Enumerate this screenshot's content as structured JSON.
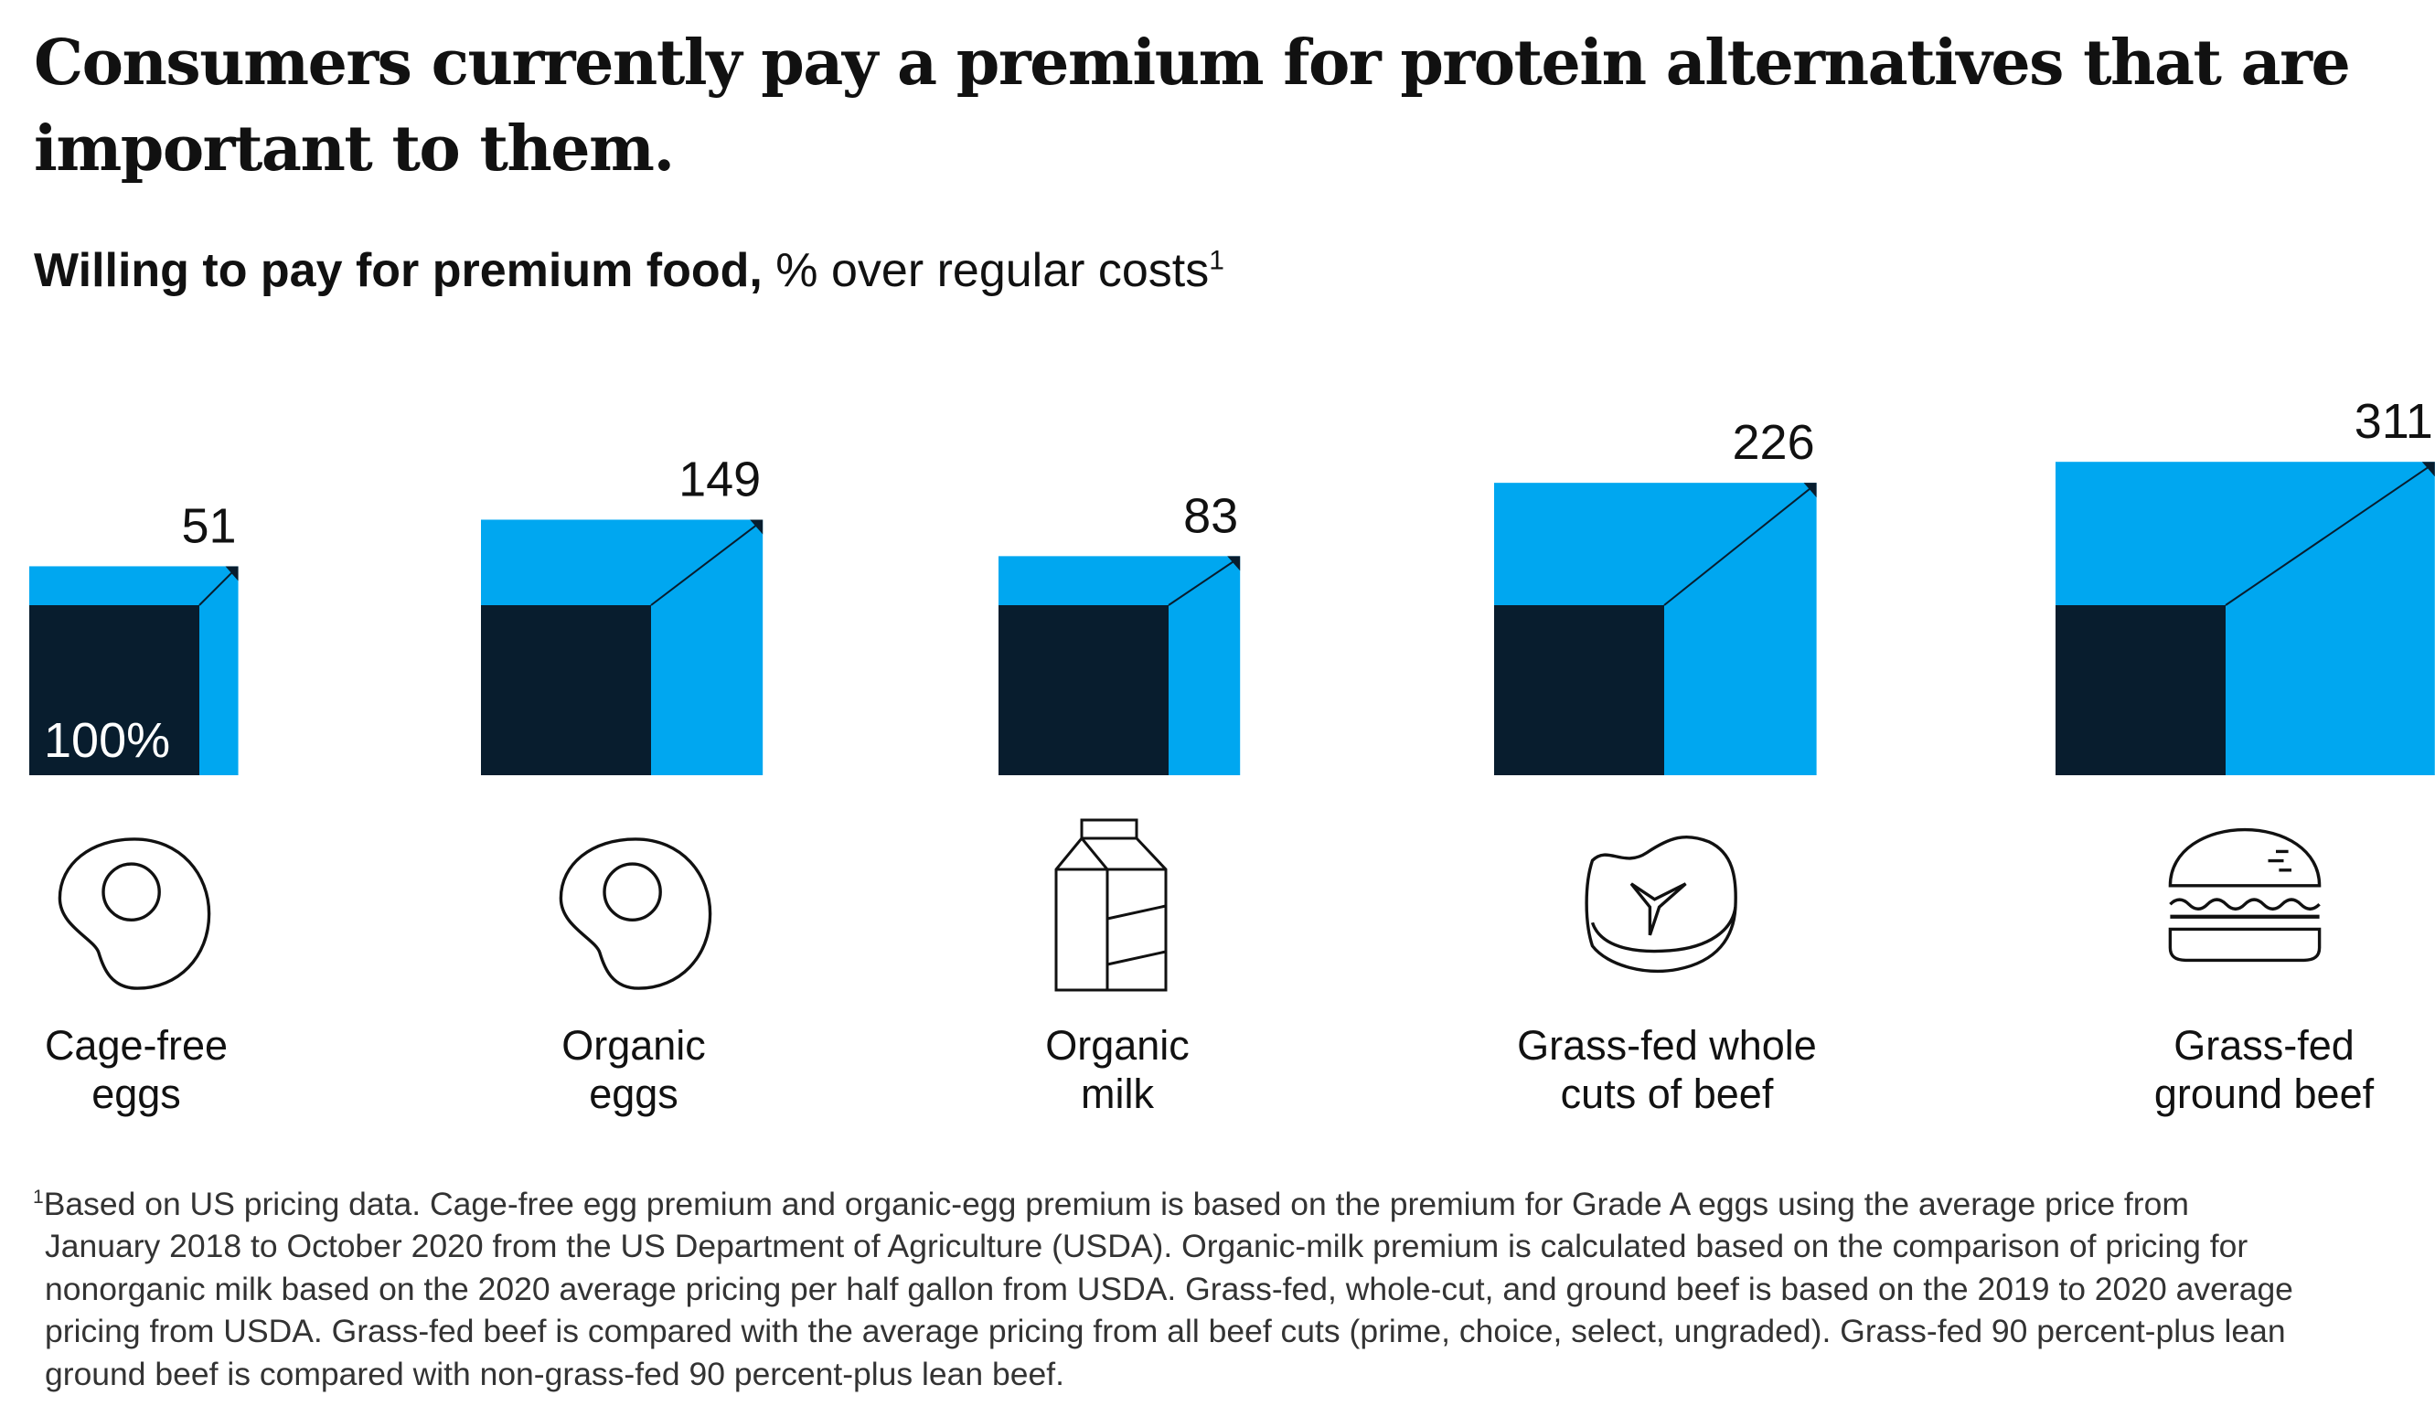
{
  "title": "Consumers currently pay a premium for protein alternatives that are important to them.",
  "subtitle": {
    "bold": "Willing to pay for premium food,",
    "rest": " % over regular costs",
    "footnote_mark": "1"
  },
  "colors": {
    "base": "#081d2e",
    "premium": "#00a7f0"
  },
  "chart_data": {
    "type": "bar",
    "title": "Willing to pay for premium food, % over regular costs",
    "base_label": "100%",
    "categories": [
      "Cage-free eggs",
      "Organic eggs",
      "Organic milk",
      "Grass-fed whole cuts of beef",
      "Grass-fed ground beef"
    ],
    "values": [
      51,
      149,
      83,
      226,
      311
    ],
    "value_labels": [
      "51",
      "149",
      "83",
      "226",
      "311"
    ],
    "base_value": 100
  },
  "items": [
    {
      "label_1": "Cage-free",
      "label_2": "eggs",
      "icon": "fried-egg-icon"
    },
    {
      "label_1": "Organic",
      "label_2": "eggs",
      "icon": "fried-egg-icon"
    },
    {
      "label_1": "Organic",
      "label_2": "milk",
      "icon": "milk-carton-icon"
    },
    {
      "label_1": "Grass-fed whole",
      "label_2": "cuts of beef",
      "icon": "steak-icon"
    },
    {
      "label_1": "Grass-fed",
      "label_2": "ground beef",
      "icon": "burger-icon"
    }
  ],
  "footnote": {
    "mark": "1",
    "lines": [
      "Based on US pricing data. Cage-free egg premium and organic-egg premium is based on the premium for Grade A eggs using the average price from",
      "January 2018 to October 2020 from the US Department of Agriculture (USDA). Organic-milk premium is calculated based on the comparison of pricing for",
      "nonorganic milk based on the 2020 average pricing per half gallon from USDA. Grass-fed, whole-cut, and ground beef is based on the 2019 to 2020 average",
      "pricing from USDA. Grass-fed beef is compared with the average pricing from all beef cuts (prime, choice, select, ungraded). Grass-fed 90 percent-plus lean",
      "ground beef is compared with non-grass-fed 90 percent-plus lean beef."
    ]
  }
}
